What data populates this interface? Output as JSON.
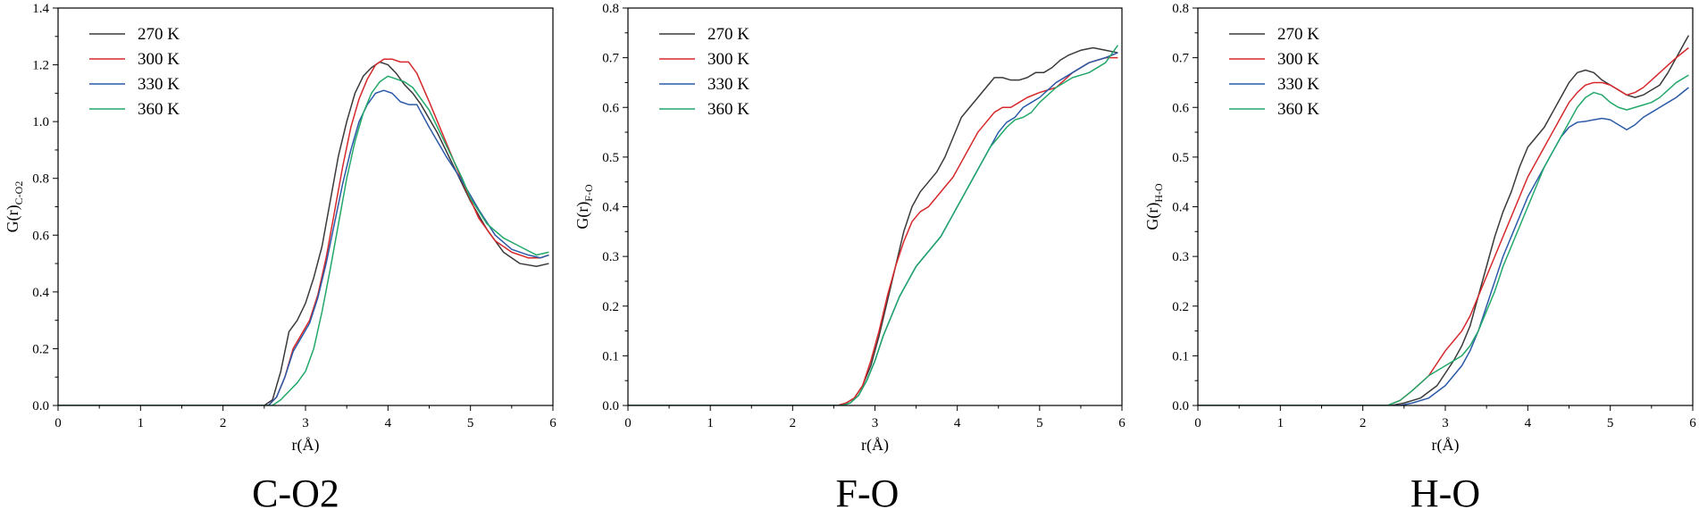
{
  "series_colors": [
    "#3a3a3a",
    "#d6282b",
    "#2b5aa8",
    "#22a86a"
  ],
  "chart_data": [
    {
      "type": "line",
      "title": "C-O2",
      "xlabel": "r(Å)",
      "ylabel": "G(r)",
      "ylabel_sub": "C-O2",
      "xlim": [
        0,
        6
      ],
      "ylim": [
        0,
        1.4
      ],
      "xticks": [
        0,
        1,
        2,
        3,
        4,
        5,
        6
      ],
      "yticks": [
        0.0,
        0.2,
        0.4,
        0.6,
        0.8,
        1.0,
        1.2,
        1.4
      ],
      "ytick_labels": [
        "0.0",
        "0.2",
        "0.4",
        "0.6",
        "0.8",
        "1.0",
        "1.2",
        "1.4"
      ],
      "grid": false,
      "legend_position": "top-left",
      "series": [
        {
          "name": "270 K",
          "x": [
            0,
            2.5,
            2.6,
            2.7,
            2.8,
            2.9,
            3.0,
            3.1,
            3.2,
            3.3,
            3.4,
            3.5,
            3.6,
            3.7,
            3.8,
            3.9,
            4.0,
            4.1,
            4.2,
            4.3,
            4.4,
            4.5,
            4.6,
            4.8,
            5.0,
            5.2,
            5.4,
            5.6,
            5.8,
            5.95
          ],
          "y": [
            0,
            0,
            0.02,
            0.12,
            0.26,
            0.3,
            0.36,
            0.45,
            0.56,
            0.72,
            0.88,
            1.0,
            1.1,
            1.16,
            1.19,
            1.21,
            1.2,
            1.17,
            1.13,
            1.1,
            1.06,
            1.01,
            0.96,
            0.84,
            0.72,
            0.62,
            0.54,
            0.5,
            0.49,
            0.5
          ]
        },
        {
          "name": "300 K",
          "x": [
            0,
            2.55,
            2.65,
            2.75,
            2.85,
            2.95,
            3.05,
            3.15,
            3.25,
            3.35,
            3.45,
            3.55,
            3.65,
            3.75,
            3.85,
            3.95,
            4.05,
            4.15,
            4.25,
            4.35,
            4.5,
            4.7,
            4.9,
            5.1,
            5.3,
            5.5,
            5.7,
            5.85,
            5.95
          ],
          "y": [
            0,
            0,
            0.03,
            0.1,
            0.2,
            0.25,
            0.3,
            0.39,
            0.52,
            0.68,
            0.84,
            0.98,
            1.08,
            1.15,
            1.2,
            1.22,
            1.22,
            1.21,
            1.21,
            1.17,
            1.07,
            0.93,
            0.79,
            0.66,
            0.58,
            0.54,
            0.52,
            0.52,
            0.53
          ]
        },
        {
          "name": "330 K",
          "x": [
            0,
            2.55,
            2.65,
            2.75,
            2.85,
            2.95,
            3.05,
            3.15,
            3.25,
            3.35,
            3.45,
            3.55,
            3.65,
            3.75,
            3.85,
            3.95,
            4.05,
            4.15,
            4.25,
            4.35,
            4.5,
            4.7,
            4.9,
            5.1,
            5.3,
            5.5,
            5.7,
            5.85,
            5.95
          ],
          "y": [
            0,
            0,
            0.03,
            0.1,
            0.19,
            0.24,
            0.29,
            0.38,
            0.5,
            0.64,
            0.78,
            0.9,
            1.0,
            1.06,
            1.1,
            1.11,
            1.1,
            1.07,
            1.06,
            1.06,
            0.98,
            0.88,
            0.79,
            0.69,
            0.6,
            0.55,
            0.53,
            0.52,
            0.53
          ]
        },
        {
          "name": "360 K",
          "x": [
            0,
            2.6,
            2.7,
            2.8,
            2.9,
            3.0,
            3.1,
            3.2,
            3.3,
            3.4,
            3.5,
            3.6,
            3.7,
            3.8,
            3.9,
            4.0,
            4.1,
            4.2,
            4.3,
            4.5,
            4.7,
            4.9,
            5.0,
            5.2,
            5.4,
            5.6,
            5.8,
            5.95
          ],
          "y": [
            0,
            0,
            0.02,
            0.05,
            0.08,
            0.12,
            0.2,
            0.33,
            0.48,
            0.64,
            0.8,
            0.93,
            1.03,
            1.1,
            1.14,
            1.16,
            1.15,
            1.14,
            1.12,
            1.04,
            0.92,
            0.8,
            0.73,
            0.64,
            0.59,
            0.56,
            0.53,
            0.54
          ]
        }
      ]
    },
    {
      "type": "line",
      "title": "F-O",
      "xlabel": "r(Å)",
      "ylabel": "G(r)",
      "ylabel_sub": "F-O",
      "xlim": [
        0,
        6
      ],
      "ylim": [
        0,
        0.8
      ],
      "xticks": [
        0,
        1,
        2,
        3,
        4,
        5,
        6
      ],
      "yticks": [
        0.0,
        0.1,
        0.2,
        0.3,
        0.4,
        0.5,
        0.6,
        0.7,
        0.8
      ],
      "ytick_labels": [
        "0.0",
        "0.1",
        "0.2",
        "0.3",
        "0.4",
        "0.5",
        "0.6",
        "0.7",
        "0.8"
      ],
      "grid": false,
      "legend_position": "top-left",
      "series": [
        {
          "name": "270 K",
          "x": [
            0,
            2.55,
            2.65,
            2.75,
            2.85,
            2.95,
            3.05,
            3.15,
            3.25,
            3.35,
            3.45,
            3.55,
            3.65,
            3.75,
            3.85,
            3.95,
            4.05,
            4.15,
            4.25,
            4.35,
            4.45,
            4.55,
            4.65,
            4.75,
            4.85,
            4.95,
            5.05,
            5.15,
            5.25,
            5.35,
            5.5,
            5.65,
            5.8,
            5.95
          ],
          "y": [
            0,
            0,
            0.005,
            0.015,
            0.04,
            0.08,
            0.14,
            0.21,
            0.28,
            0.35,
            0.4,
            0.43,
            0.45,
            0.47,
            0.5,
            0.54,
            0.58,
            0.6,
            0.62,
            0.64,
            0.66,
            0.66,
            0.655,
            0.655,
            0.66,
            0.67,
            0.67,
            0.68,
            0.695,
            0.705,
            0.715,
            0.72,
            0.715,
            0.71
          ]
        },
        {
          "name": "300 K",
          "x": [
            0,
            2.55,
            2.65,
            2.75,
            2.85,
            2.95,
            3.05,
            3.15,
            3.25,
            3.35,
            3.45,
            3.55,
            3.65,
            3.75,
            3.85,
            3.95,
            4.05,
            4.15,
            4.25,
            4.35,
            4.45,
            4.55,
            4.65,
            4.75,
            4.85,
            5.0,
            5.2,
            5.4,
            5.6,
            5.8,
            5.95
          ],
          "y": [
            0,
            0,
            0.005,
            0.015,
            0.04,
            0.09,
            0.15,
            0.22,
            0.28,
            0.33,
            0.37,
            0.39,
            0.4,
            0.42,
            0.44,
            0.46,
            0.49,
            0.52,
            0.55,
            0.57,
            0.59,
            0.6,
            0.6,
            0.61,
            0.62,
            0.63,
            0.64,
            0.67,
            0.69,
            0.7,
            0.7
          ]
        },
        {
          "name": "330 K",
          "x": [
            0,
            2.6,
            2.7,
            2.8,
            2.9,
            3.0,
            3.1,
            3.2,
            3.3,
            3.4,
            3.5,
            3.6,
            3.7,
            3.8,
            3.9,
            4.0,
            4.1,
            4.2,
            4.3,
            4.4,
            4.5,
            4.6,
            4.7,
            4.8,
            4.9,
            5.0,
            5.2,
            5.4,
            5.6,
            5.8,
            5.95
          ],
          "y": [
            0,
            0,
            0.005,
            0.02,
            0.05,
            0.09,
            0.14,
            0.18,
            0.22,
            0.25,
            0.28,
            0.3,
            0.32,
            0.34,
            0.37,
            0.4,
            0.43,
            0.46,
            0.49,
            0.52,
            0.55,
            0.57,
            0.58,
            0.6,
            0.61,
            0.62,
            0.65,
            0.67,
            0.69,
            0.7,
            0.71
          ]
        },
        {
          "name": "360 K",
          "x": [
            0,
            2.6,
            2.7,
            2.8,
            2.9,
            3.0,
            3.1,
            3.2,
            3.3,
            3.4,
            3.5,
            3.6,
            3.7,
            3.8,
            3.9,
            4.0,
            4.1,
            4.2,
            4.3,
            4.4,
            4.5,
            4.6,
            4.7,
            4.8,
            4.9,
            5.0,
            5.2,
            5.4,
            5.6,
            5.8,
            5.95
          ],
          "y": [
            0,
            0,
            0.005,
            0.02,
            0.05,
            0.09,
            0.14,
            0.18,
            0.22,
            0.25,
            0.28,
            0.3,
            0.32,
            0.34,
            0.37,
            0.4,
            0.43,
            0.46,
            0.49,
            0.52,
            0.54,
            0.56,
            0.575,
            0.58,
            0.59,
            0.61,
            0.64,
            0.66,
            0.67,
            0.69,
            0.725
          ]
        }
      ]
    },
    {
      "type": "line",
      "title": "H-O",
      "xlabel": "r(Å)",
      "ylabel": "G(r)",
      "ylabel_sub": "H-O",
      "xlim": [
        0,
        6
      ],
      "ylim": [
        0,
        0.8
      ],
      "xticks": [
        0,
        1,
        2,
        3,
        4,
        5,
        6
      ],
      "yticks": [
        0.0,
        0.1,
        0.2,
        0.3,
        0.4,
        0.5,
        0.6,
        0.7,
        0.8
      ],
      "ytick_labels": [
        "0.0",
        "0.1",
        "0.2",
        "0.3",
        "0.4",
        "0.5",
        "0.6",
        "0.7",
        "0.8"
      ],
      "grid": false,
      "legend_position": "top-left",
      "series": [
        {
          "name": "270 K",
          "x": [
            0,
            2.35,
            2.5,
            2.7,
            2.9,
            3.1,
            3.2,
            3.3,
            3.4,
            3.5,
            3.6,
            3.7,
            3.8,
            3.9,
            4.0,
            4.1,
            4.2,
            4.3,
            4.4,
            4.5,
            4.6,
            4.7,
            4.8,
            4.9,
            5.0,
            5.1,
            5.2,
            5.3,
            5.4,
            5.5,
            5.6,
            5.7,
            5.8,
            5.95
          ],
          "y": [
            0,
            0,
            0.005,
            0.015,
            0.04,
            0.09,
            0.12,
            0.16,
            0.22,
            0.28,
            0.34,
            0.39,
            0.43,
            0.48,
            0.52,
            0.54,
            0.56,
            0.59,
            0.62,
            0.65,
            0.67,
            0.675,
            0.67,
            0.655,
            0.645,
            0.635,
            0.625,
            0.62,
            0.625,
            0.635,
            0.645,
            0.67,
            0.7,
            0.745
          ]
        },
        {
          "name": "300 K",
          "x": [
            0,
            2.3,
            2.45,
            2.6,
            2.8,
            3.0,
            3.2,
            3.3,
            3.4,
            3.5,
            3.6,
            3.7,
            3.8,
            3.9,
            4.0,
            4.1,
            4.2,
            4.3,
            4.4,
            4.5,
            4.6,
            4.7,
            4.8,
            4.9,
            5.0,
            5.1,
            5.2,
            5.3,
            5.4,
            5.5,
            5.6,
            5.7,
            5.8,
            5.95
          ],
          "y": [
            0,
            0,
            0.01,
            0.03,
            0.06,
            0.11,
            0.15,
            0.18,
            0.22,
            0.26,
            0.3,
            0.34,
            0.38,
            0.42,
            0.46,
            0.49,
            0.52,
            0.55,
            0.58,
            0.61,
            0.63,
            0.645,
            0.65,
            0.65,
            0.645,
            0.635,
            0.625,
            0.63,
            0.64,
            0.655,
            0.67,
            0.685,
            0.7,
            0.72
          ]
        },
        {
          "name": "330 K",
          "x": [
            0,
            2.45,
            2.6,
            2.8,
            3.0,
            3.2,
            3.3,
            3.4,
            3.5,
            3.6,
            3.7,
            3.8,
            3.9,
            4.0,
            4.1,
            4.2,
            4.3,
            4.4,
            4.5,
            4.6,
            4.7,
            4.8,
            4.9,
            5.0,
            5.1,
            5.2,
            5.3,
            5.4,
            5.5,
            5.6,
            5.7,
            5.8,
            5.95
          ],
          "y": [
            0,
            0,
            0.005,
            0.015,
            0.04,
            0.08,
            0.11,
            0.15,
            0.2,
            0.25,
            0.3,
            0.34,
            0.38,
            0.42,
            0.45,
            0.48,
            0.51,
            0.54,
            0.56,
            0.57,
            0.572,
            0.575,
            0.578,
            0.575,
            0.565,
            0.555,
            0.565,
            0.58,
            0.59,
            0.6,
            0.61,
            0.62,
            0.64
          ]
        },
        {
          "name": "360 K",
          "x": [
            0,
            2.3,
            2.45,
            2.6,
            2.8,
            3.0,
            3.2,
            3.3,
            3.4,
            3.5,
            3.6,
            3.7,
            3.8,
            3.9,
            4.0,
            4.1,
            4.2,
            4.3,
            4.4,
            4.5,
            4.6,
            4.7,
            4.8,
            4.9,
            5.0,
            5.1,
            5.2,
            5.3,
            5.4,
            5.5,
            5.6,
            5.7,
            5.8,
            5.95
          ],
          "y": [
            0,
            0,
            0.01,
            0.03,
            0.06,
            0.08,
            0.1,
            0.12,
            0.15,
            0.19,
            0.23,
            0.28,
            0.32,
            0.36,
            0.4,
            0.44,
            0.48,
            0.51,
            0.54,
            0.57,
            0.6,
            0.62,
            0.63,
            0.625,
            0.61,
            0.6,
            0.595,
            0.6,
            0.605,
            0.61,
            0.62,
            0.635,
            0.65,
            0.665
          ]
        }
      ]
    }
  ]
}
